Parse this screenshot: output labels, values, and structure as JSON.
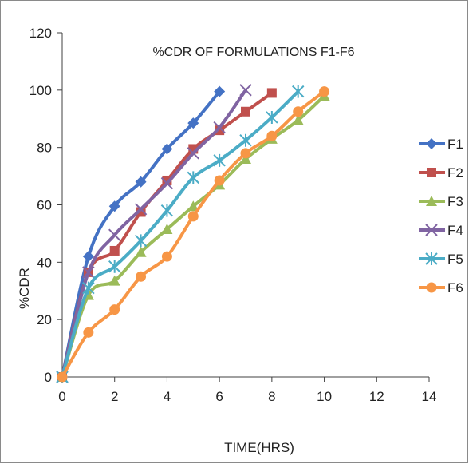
{
  "chart_data": {
    "type": "line",
    "title": "%CDR OF FORMULATIONS F1-F6",
    "xlabel": "TIME(HRS)",
    "ylabel": "%CDR",
    "xlim": [
      0,
      14
    ],
    "ylim": [
      0,
      120
    ],
    "xticks": [
      0,
      2,
      4,
      6,
      8,
      10,
      12,
      14
    ],
    "yticks": [
      0,
      20,
      40,
      60,
      80,
      100,
      120
    ],
    "grid": false,
    "legend_position": "right",
    "series": [
      {
        "name": "F1",
        "color": "#4472C4",
        "marker": "diamond",
        "x": [
          0,
          1,
          2,
          3,
          4,
          5,
          6
        ],
        "y": [
          0,
          42,
          59.5,
          68,
          79.5,
          88.5,
          99.5
        ]
      },
      {
        "name": "F2",
        "color": "#C0504D",
        "marker": "square",
        "x": [
          0,
          1,
          2,
          3,
          4,
          5,
          6,
          7,
          8
        ],
        "y": [
          0,
          36.5,
          44,
          57.5,
          68.5,
          79.5,
          86,
          92.5,
          99
        ]
      },
      {
        "name": "F3",
        "color": "#9BBB59",
        "marker": "triangle",
        "x": [
          0,
          1,
          2,
          3,
          4,
          5,
          6,
          7,
          8,
          9,
          10
        ],
        "y": [
          0,
          28.5,
          33.5,
          43.5,
          51.5,
          59.5,
          67,
          76,
          83,
          89.5,
          98
        ]
      },
      {
        "name": "F4",
        "color": "#8064A2",
        "marker": "x",
        "x": [
          0,
          1,
          2,
          3,
          4,
          5,
          6,
          7
        ],
        "y": [
          0,
          36.5,
          49.5,
          58.5,
          67.5,
          78,
          87,
          100
        ]
      },
      {
        "name": "F5",
        "color": "#4BACC6",
        "marker": "star",
        "x": [
          0,
          1,
          2,
          3,
          4,
          5,
          6,
          7,
          8,
          9
        ],
        "y": [
          0,
          31,
          38.5,
          47.5,
          58,
          69.5,
          75.5,
          82.5,
          90.5,
          99.5
        ]
      },
      {
        "name": "F6",
        "color": "#F79646",
        "marker": "circle",
        "x": [
          0,
          1,
          2,
          3,
          4,
          5,
          6,
          7,
          8,
          9,
          10
        ],
        "y": [
          0,
          15.5,
          23.5,
          35,
          42,
          56,
          68.5,
          78,
          84,
          92.5,
          99.5
        ]
      }
    ]
  }
}
